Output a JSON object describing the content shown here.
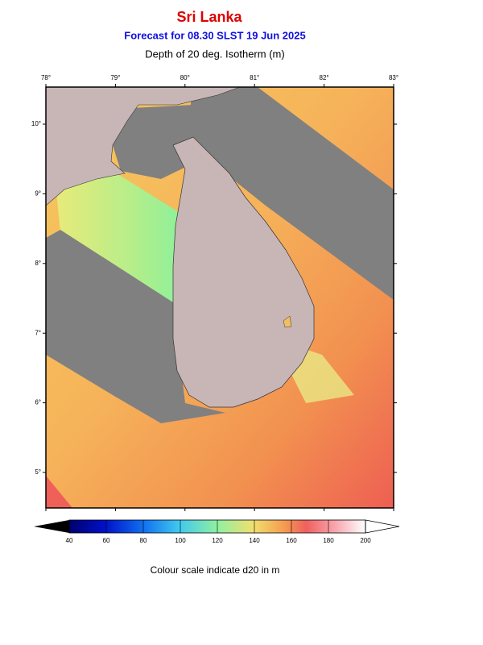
{
  "header": {
    "title": "Sri Lanka",
    "subtitle": "Forecast for  08.30 SLST 19 Jun 2025",
    "heading": "Depth of 20 deg. Isotherm (m)"
  },
  "map": {
    "lon_ticks": [
      {
        "value": 78,
        "label": "78°"
      },
      {
        "value": 79,
        "label": "79°"
      },
      {
        "value": 80,
        "label": "80°"
      },
      {
        "value": 81,
        "label": "81°"
      },
      {
        "value": 82,
        "label": "82°"
      },
      {
        "value": 83,
        "label": "83°"
      }
    ],
    "lat_ticks": [
      {
        "value": 10,
        "label": "10°"
      },
      {
        "value": 9,
        "label": "9°"
      },
      {
        "value": 8,
        "label": "8°"
      },
      {
        "value": 7,
        "label": "7°"
      },
      {
        "value": 6,
        "label": "6°"
      },
      {
        "value": 5,
        "label": "5°"
      }
    ]
  },
  "colorbar": {
    "range": [
      40,
      200
    ],
    "ticks": [
      40,
      60,
      80,
      100,
      120,
      140,
      160,
      180,
      200
    ],
    "caption": "Colour scale indicate d20 in m"
  }
}
